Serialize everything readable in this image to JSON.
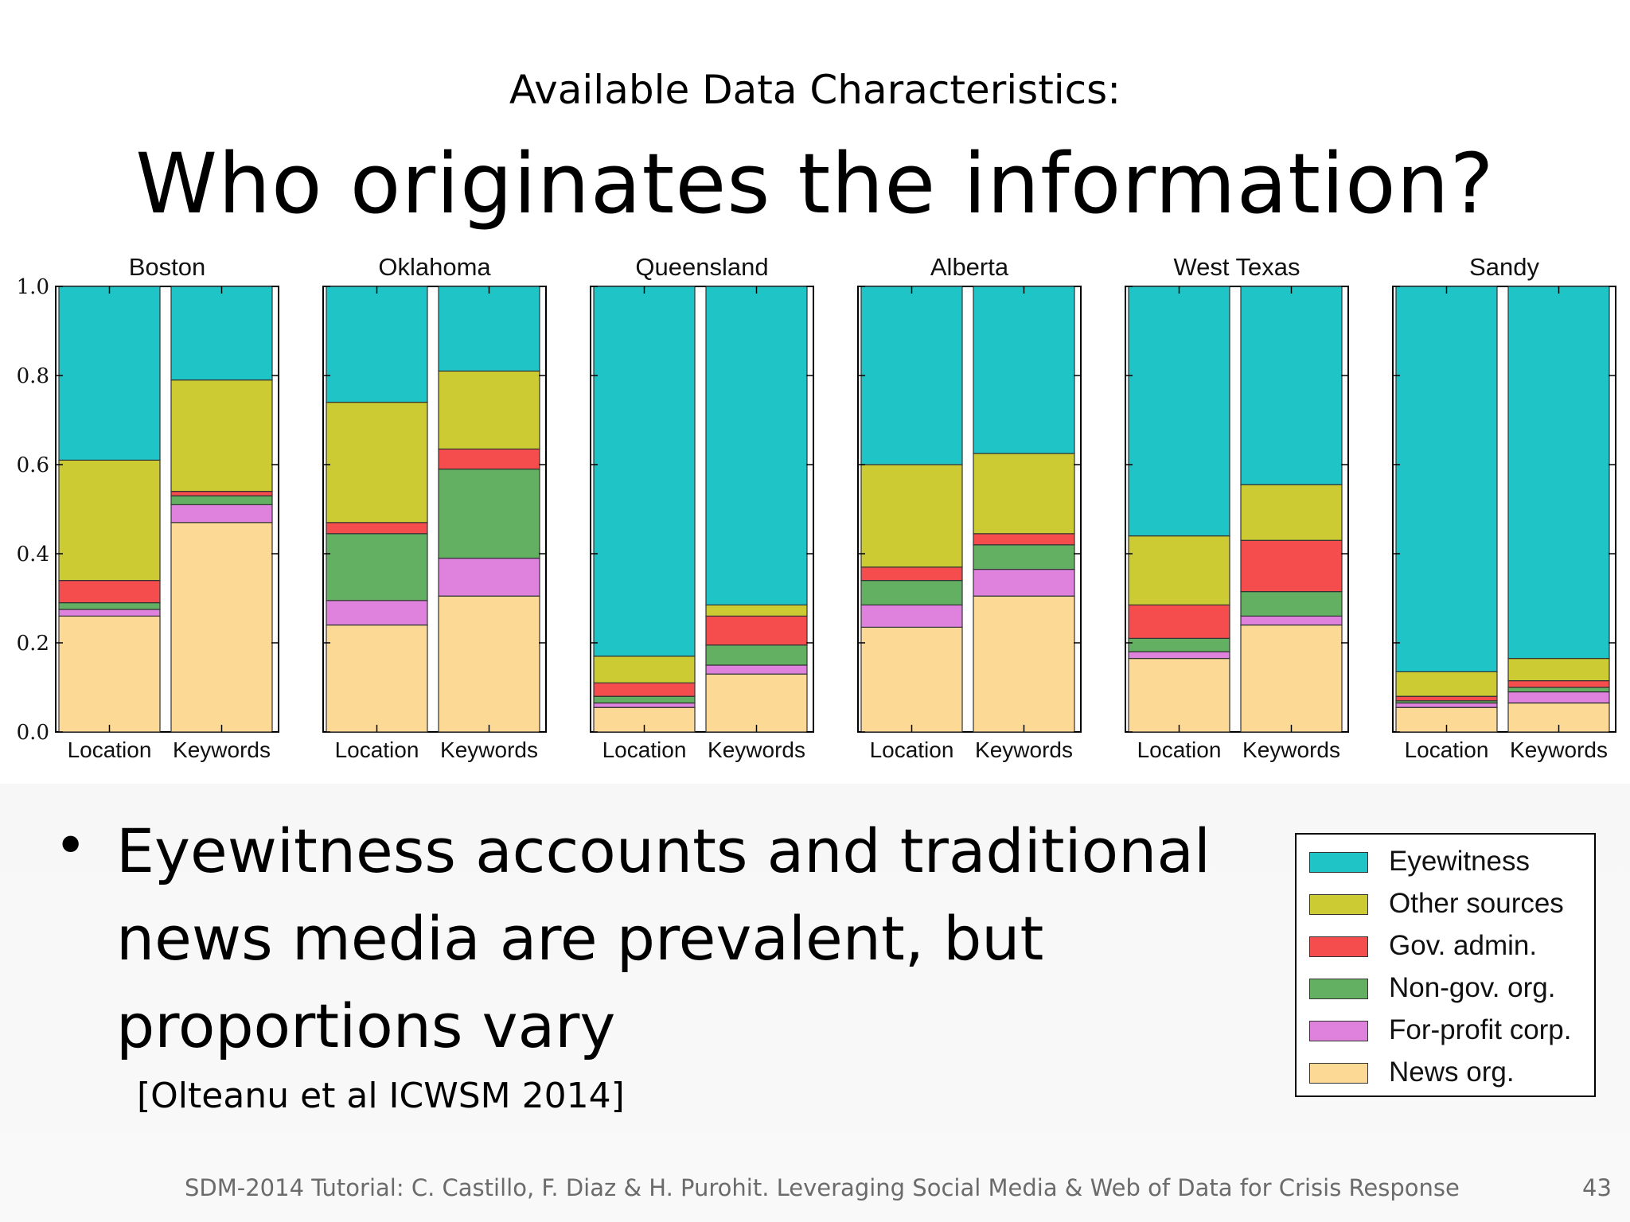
{
  "slide": {
    "subtitle": "Available Data Characteristics:",
    "title": "Who originates the information?",
    "bullet": "Eyewitness accounts and traditional news media are prevalent, but proportions vary",
    "citation": "[Olteanu et al ICWSM 2014]",
    "footer": "SDM-2014 Tutorial: C. Castillo, F. Diaz & H. Purohit. Leveraging Social Media & Web of Data for Crisis Response",
    "page_number": "43"
  },
  "legend": {
    "items": [
      {
        "label": "Eyewitness",
        "color": "#1fc4c6"
      },
      {
        "label": "Other sources",
        "color": "#cccb33"
      },
      {
        "label": "Gov. admin.",
        "color": "#f54d4d"
      },
      {
        "label": "Non-gov. org.",
        "color": "#63b063"
      },
      {
        "label": "For-profit corp.",
        "color": "#de82de"
      },
      {
        "label": "News org.",
        "color": "#fdd996"
      }
    ]
  },
  "chart_data": {
    "type": "bar",
    "stacked": true,
    "ylim": [
      0,
      1
    ],
    "yticks": [
      "0.0",
      "0.2",
      "0.4",
      "0.6",
      "0.8",
      "1.0"
    ],
    "category_labels": [
      "Location",
      "Keywords"
    ],
    "stack_order_bottom_to_top": [
      "News org.",
      "For-profit corp.",
      "Non-gov. org.",
      "Gov. admin.",
      "Other sources",
      "Eyewitness"
    ],
    "panels": [
      {
        "title": "Boston",
        "bars": [
          {
            "label": "Location",
            "values": [
              0.26,
              0.015,
              0.015,
              0.05,
              0.27,
              0.39
            ]
          },
          {
            "label": "Keywords",
            "values": [
              0.47,
              0.04,
              0.02,
              0.01,
              0.25,
              0.21
            ]
          }
        ]
      },
      {
        "title": "Oklahoma",
        "bars": [
          {
            "label": "Location",
            "values": [
              0.24,
              0.055,
              0.15,
              0.025,
              0.27,
              0.26
            ]
          },
          {
            "label": "Keywords",
            "values": [
              0.305,
              0.085,
              0.2,
              0.045,
              0.175,
              0.19
            ]
          }
        ]
      },
      {
        "title": "Queensland",
        "bars": [
          {
            "label": "Location",
            "values": [
              0.055,
              0.01,
              0.015,
              0.03,
              0.06,
              0.83
            ]
          },
          {
            "label": "Keywords",
            "values": [
              0.13,
              0.02,
              0.045,
              0.065,
              0.025,
              0.715
            ]
          }
        ]
      },
      {
        "title": "Alberta",
        "bars": [
          {
            "label": "Location",
            "values": [
              0.235,
              0.05,
              0.055,
              0.03,
              0.23,
              0.4
            ]
          },
          {
            "label": "Keywords",
            "values": [
              0.305,
              0.06,
              0.055,
              0.025,
              0.18,
              0.375
            ]
          }
        ]
      },
      {
        "title": "West Texas",
        "bars": [
          {
            "label": "Location",
            "values": [
              0.165,
              0.015,
              0.03,
              0.075,
              0.155,
              0.56
            ]
          },
          {
            "label": "Keywords",
            "values": [
              0.24,
              0.02,
              0.055,
              0.115,
              0.125,
              0.445
            ]
          }
        ]
      },
      {
        "title": "Sandy",
        "bars": [
          {
            "label": "Location",
            "values": [
              0.055,
              0.01,
              0.005,
              0.01,
              0.055,
              0.865
            ]
          },
          {
            "label": "Keywords",
            "values": [
              0.065,
              0.025,
              0.01,
              0.015,
              0.05,
              0.835
            ]
          }
        ]
      }
    ]
  }
}
